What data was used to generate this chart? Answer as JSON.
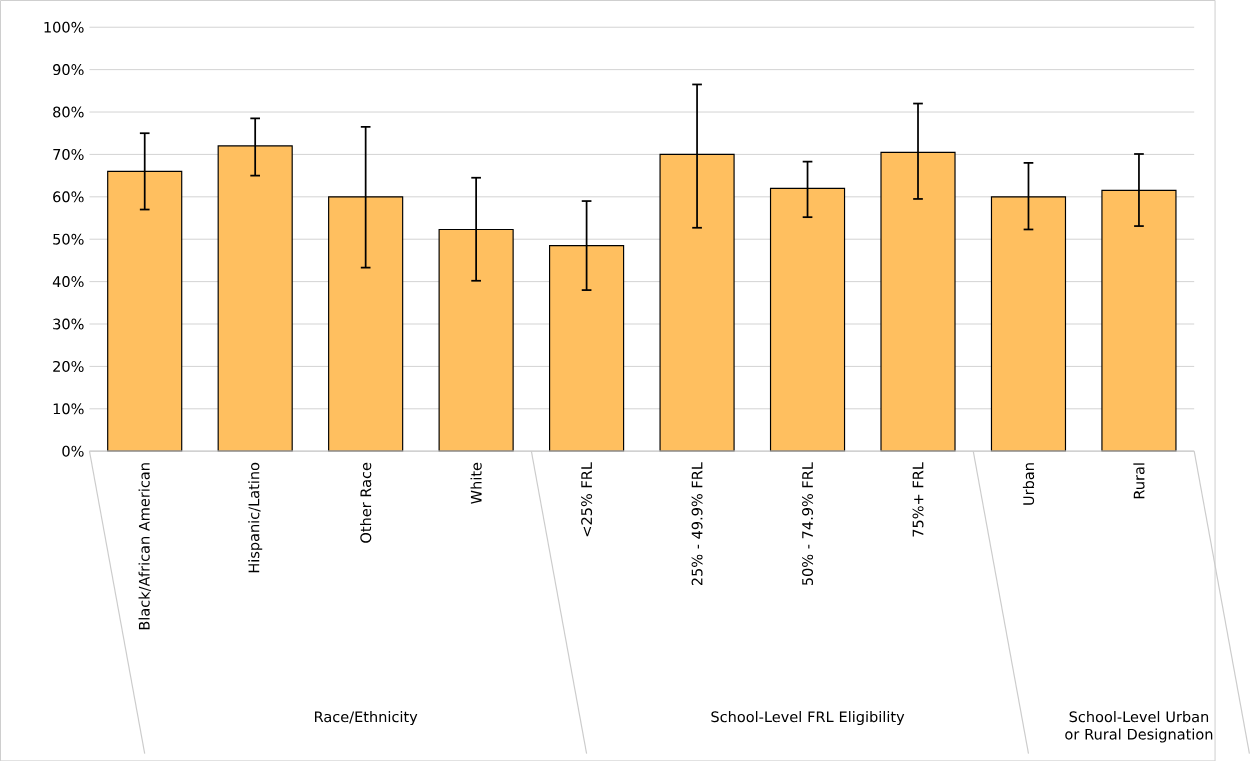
{
  "chart_data": {
    "type": "bar",
    "categories": [
      "Black/African American",
      "Hispanic/Latino",
      "Other Race",
      "White",
      "<25% FRL",
      "25% - 49.9% FRL",
      "50% - 74.9% FRL",
      "75%+ FRL",
      "Urban",
      "Rural"
    ],
    "values": [
      66,
      72,
      60,
      52.3,
      48.5,
      70,
      62,
      70.5,
      60,
      61.5
    ],
    "errors": [
      [
        57,
        75
      ],
      [
        65,
        78.5
      ],
      [
        43.3,
        76.5
      ],
      [
        40.2,
        64.5
      ],
      [
        38,
        59
      ],
      [
        52.7,
        86.5
      ],
      [
        55.2,
        68.3
      ],
      [
        59.5,
        82
      ],
      [
        52.3,
        68
      ],
      [
        53.1,
        70.1
      ]
    ],
    "color": "#ffbf5f",
    "ylim": [
      0,
      100
    ],
    "yticks": [
      {
        "value": 0,
        "label": "0%"
      },
      {
        "value": 10,
        "label": "10%"
      },
      {
        "value": 20,
        "label": "20%"
      },
      {
        "value": 30,
        "label": "30%"
      },
      {
        "value": 40,
        "label": "40%"
      },
      {
        "value": 50,
        "label": "50%"
      },
      {
        "value": 60,
        "label": "60%"
      },
      {
        "value": 70,
        "label": "70%"
      },
      {
        "value": 80,
        "label": "80%"
      },
      {
        "value": 90,
        "label": "90%"
      },
      {
        "value": 100,
        "label": "100%"
      }
    ],
    "grid": "y",
    "annotations": [
      "Race/Ethnicity",
      "School-Level FRL Eligibility",
      "School-Level Urban or Rural Designation"
    ]
  }
}
